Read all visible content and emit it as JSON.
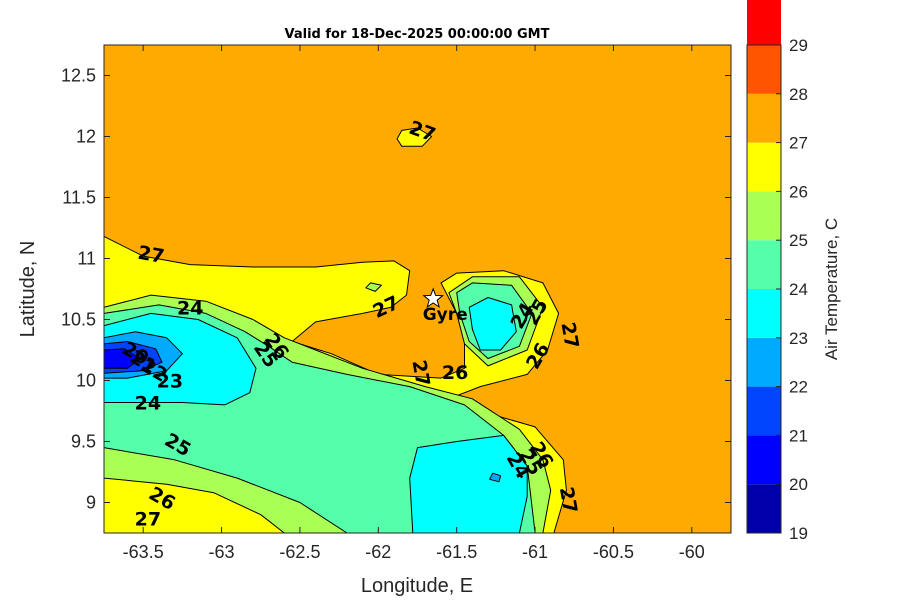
{
  "chart_data": {
    "type": "contour",
    "title": "Valid for 18-Dec-2025 00:00:00 GMT",
    "xlabel": "Longitude, E",
    "ylabel": "Latitude, N",
    "xlim": [
      -63.75,
      -59.75
    ],
    "ylim": [
      8.75,
      12.75
    ],
    "xticks": [
      -63.5,
      -63,
      -62.5,
      -62,
      -61.5,
      -61,
      -60.5,
      -60
    ],
    "xtick_labels": [
      "-63.5",
      "-63",
      "-62.5",
      "-62",
      "-61.5",
      "-61",
      "-60.5",
      "-60"
    ],
    "yticks": [
      9,
      9.5,
      10,
      10.5,
      11,
      11.5,
      12,
      12.5
    ],
    "ytick_labels": [
      "9",
      "9.5",
      "10",
      "10.5",
      "11",
      "11.5",
      "12",
      "12.5"
    ],
    "colorbar": {
      "label": "Air Temperature, C",
      "min": 19,
      "max": 29,
      "tick_labels": [
        "19",
        "20",
        "21",
        "22",
        "23",
        "24",
        "25",
        "26",
        "27",
        "28",
        "29"
      ],
      "colors": [
        "#0000aa",
        "#0000ff",
        "#0044ff",
        "#00aaff",
        "#00ffff",
        "#55ffaa",
        "#aaff55",
        "#ffff00",
        "#ffaa00",
        "#ff5500",
        "#ff0000"
      ]
    },
    "background_level_color": "#ffaa00",
    "regions": [
      {
        "name": "yellow-west",
        "color": "#ffff00",
        "points": [
          [
            -63.75,
            11.18
          ],
          [
            -63.5,
            11.02
          ],
          [
            -63.2,
            10.95
          ],
          [
            -62.8,
            10.93
          ],
          [
            -62.4,
            10.93
          ],
          [
            -62.1,
            10.97
          ],
          [
            -61.9,
            10.98
          ],
          [
            -61.8,
            10.9
          ],
          [
            -61.82,
            10.7
          ],
          [
            -61.92,
            10.6
          ],
          [
            -62.1,
            10.55
          ],
          [
            -62.4,
            10.48
          ],
          [
            -62.55,
            10.32
          ],
          [
            -62.3,
            10.22
          ],
          [
            -62,
            10.05
          ],
          [
            -61.6,
            10.02
          ],
          [
            -61.45,
            10.1
          ],
          [
            -61.45,
            10.32
          ],
          [
            -61.5,
            10.55
          ],
          [
            -61.6,
            10.8
          ],
          [
            -61.5,
            10.88
          ],
          [
            -61.2,
            10.9
          ],
          [
            -60.95,
            10.8
          ],
          [
            -60.85,
            10.55
          ],
          [
            -60.92,
            10.25
          ],
          [
            -61.05,
            10.05
          ],
          [
            -61.35,
            9.95
          ],
          [
            -61.55,
            9.85
          ],
          [
            -61.35,
            9.75
          ],
          [
            -61,
            9.62
          ],
          [
            -60.82,
            9.35
          ],
          [
            -60.8,
            9.1
          ],
          [
            -60.88,
            8.75
          ],
          [
            -63.75,
            8.75
          ]
        ]
      },
      {
        "name": "green-west",
        "color": "#aaff55",
        "points": [
          [
            -63.75,
            10.6
          ],
          [
            -63.45,
            10.7
          ],
          [
            -63.1,
            10.65
          ],
          [
            -62.8,
            10.5
          ],
          [
            -62.6,
            10.35
          ],
          [
            -62.4,
            10.25
          ],
          [
            -62.1,
            10.1
          ],
          [
            -61.7,
            9.95
          ],
          [
            -61.4,
            9.85
          ],
          [
            -61.1,
            9.6
          ],
          [
            -60.95,
            9.35
          ],
          [
            -60.9,
            9.1
          ],
          [
            -60.95,
            8.75
          ],
          [
            -62.6,
            8.75
          ],
          [
            -62.75,
            8.9
          ],
          [
            -63.05,
            9.08
          ],
          [
            -63.35,
            9.15
          ],
          [
            -63.75,
            9.2
          ]
        ]
      },
      {
        "name": "green-east",
        "color": "#aaff55",
        "points": [
          [
            -61.55,
            10.72
          ],
          [
            -61.4,
            10.85
          ],
          [
            -61.1,
            10.85
          ],
          [
            -60.95,
            10.6
          ],
          [
            -61.05,
            10.25
          ],
          [
            -61.3,
            10.12
          ],
          [
            -61.45,
            10.3
          ],
          [
            -61.5,
            10.55
          ]
        ]
      },
      {
        "name": "mint-west",
        "color": "#55ffaa",
        "points": [
          [
            -63.75,
            10.55
          ],
          [
            -63.4,
            10.62
          ],
          [
            -63.1,
            10.55
          ],
          [
            -62.85,
            10.4
          ],
          [
            -62.7,
            10.28
          ],
          [
            -62.55,
            10.15
          ],
          [
            -62.2,
            10.05
          ],
          [
            -61.8,
            9.95
          ],
          [
            -61.45,
            9.8
          ],
          [
            -61.2,
            9.55
          ],
          [
            -61.05,
            9.3
          ],
          [
            -61,
            8.75
          ],
          [
            -62.2,
            8.75
          ],
          [
            -62.5,
            9
          ],
          [
            -62.9,
            9.2
          ],
          [
            -63.3,
            9.35
          ],
          [
            -63.75,
            9.45
          ]
        ]
      },
      {
        "name": "mint-east",
        "color": "#55ffaa",
        "points": [
          [
            -61.5,
            10.72
          ],
          [
            -61.4,
            10.8
          ],
          [
            -61.15,
            10.78
          ],
          [
            -61.02,
            10.55
          ],
          [
            -61.1,
            10.28
          ],
          [
            -61.3,
            10.18
          ],
          [
            -61.42,
            10.32
          ],
          [
            -61.48,
            10.55
          ]
        ]
      },
      {
        "name": "cyan-west",
        "color": "#00ffff",
        "points": [
          [
            -63.75,
            10.45
          ],
          [
            -63.45,
            10.55
          ],
          [
            -63.15,
            10.5
          ],
          [
            -62.9,
            10.35
          ],
          [
            -62.78,
            10.1
          ],
          [
            -62.82,
            9.9
          ],
          [
            -62.98,
            9.8
          ],
          [
            -63.25,
            9.82
          ],
          [
            -63.5,
            9.82
          ],
          [
            -63.75,
            9.82
          ]
        ]
      },
      {
        "name": "cyan-south",
        "color": "#00ffff",
        "points": [
          [
            -61.5,
            9.5
          ],
          [
            -61.2,
            9.55
          ],
          [
            -61.05,
            9.3
          ],
          [
            -61.05,
            9.05
          ],
          [
            -61.1,
            8.75
          ],
          [
            -61.78,
            8.75
          ],
          [
            -61.8,
            9.2
          ],
          [
            -61.75,
            9.45
          ]
        ]
      },
      {
        "name": "cyan-east",
        "color": "#00ffff",
        "points": [
          [
            -61.42,
            10.6
          ],
          [
            -61.3,
            10.68
          ],
          [
            -61.15,
            10.62
          ],
          [
            -61.12,
            10.4
          ],
          [
            -61.22,
            10.25
          ],
          [
            -61.35,
            10.25
          ],
          [
            -61.4,
            10.42
          ]
        ]
      },
      {
        "name": "sky-west",
        "color": "#00aaff",
        "points": [
          [
            -63.75,
            10.35
          ],
          [
            -63.55,
            10.4
          ],
          [
            -63.35,
            10.35
          ],
          [
            -63.25,
            10.22
          ],
          [
            -63.35,
            10.08
          ],
          [
            -63.6,
            10.02
          ],
          [
            -63.75,
            10.02
          ]
        ]
      },
      {
        "name": "blue-west",
        "color": "#0044ff",
        "points": [
          [
            -63.75,
            10.3
          ],
          [
            -63.6,
            10.32
          ],
          [
            -63.42,
            10.26
          ],
          [
            -63.38,
            10.15
          ],
          [
            -63.5,
            10.08
          ],
          [
            -63.75,
            10.06
          ]
        ]
      },
      {
        "name": "navy-west",
        "color": "#0000ff",
        "points": [
          [
            -63.75,
            10.25
          ],
          [
            -63.62,
            10.26
          ],
          [
            -63.52,
            10.18
          ],
          [
            -63.6,
            10.1
          ],
          [
            -63.75,
            10.1
          ]
        ]
      },
      {
        "name": "islet-north",
        "color": "#ffff00",
        "points": [
          [
            -61.85,
            12.05
          ],
          [
            -61.75,
            12.07
          ],
          [
            -61.66,
            12
          ],
          [
            -61.72,
            11.92
          ],
          [
            -61.85,
            11.92
          ],
          [
            -61.88,
            11.98
          ]
        ]
      },
      {
        "name": "islet-green",
        "color": "#aaff55",
        "points": [
          [
            -62.05,
            10.8
          ],
          [
            -61.98,
            10.78
          ],
          [
            -62.02,
            10.73
          ],
          [
            -62.08,
            10.76
          ]
        ]
      },
      {
        "name": "islet-blue",
        "color": "#00aaff",
        "points": [
          [
            -61.27,
            9.24
          ],
          [
            -61.22,
            9.22
          ],
          [
            -61.23,
            9.17
          ],
          [
            -61.29,
            9.19
          ]
        ]
      }
    ],
    "contour_labels": [
      {
        "text": "27",
        "x": -61.72,
        "y": 12.04,
        "rotate": 20
      },
      {
        "text": "27",
        "x": -63.45,
        "y": 11.03,
        "rotate": 10
      },
      {
        "text": "24",
        "x": -63.2,
        "y": 10.59,
        "rotate": 0
      },
      {
        "text": "20",
        "x": -63.55,
        "y": 10.22,
        "rotate": 30
      },
      {
        "text": "21",
        "x": -63.5,
        "y": 10.15,
        "rotate": 30
      },
      {
        "text": "22",
        "x": -63.43,
        "y": 10.08,
        "rotate": 30
      },
      {
        "text": "23",
        "x": -63.33,
        "y": 9.99,
        "rotate": 0
      },
      {
        "text": "24",
        "x": -63.47,
        "y": 9.81,
        "rotate": 0
      },
      {
        "text": "25",
        "x": -63.28,
        "y": 9.47,
        "rotate": 30
      },
      {
        "text": "26",
        "x": -63.38,
        "y": 9.03,
        "rotate": 30
      },
      {
        "text": "27",
        "x": -63.47,
        "y": 8.86,
        "rotate": 0
      },
      {
        "text": "26",
        "x": -62.65,
        "y": 10.28,
        "rotate": 55
      },
      {
        "text": "25",
        "x": -62.72,
        "y": 10.21,
        "rotate": 55
      },
      {
        "text": "27",
        "x": -61.95,
        "y": 10.6,
        "rotate": -25
      },
      {
        "text": "27",
        "x": -61.73,
        "y": 10.06,
        "rotate": 80
      },
      {
        "text": "26",
        "x": -61.51,
        "y": 10.06,
        "rotate": 0
      },
      {
        "text": "24",
        "x": -61.08,
        "y": 10.53,
        "rotate": -60
      },
      {
        "text": "25",
        "x": -60.99,
        "y": 10.56,
        "rotate": -60
      },
      {
        "text": "26",
        "x": -60.98,
        "y": 10.2,
        "rotate": -60
      },
      {
        "text": "27",
        "x": -60.78,
        "y": 10.37,
        "rotate": 80
      },
      {
        "text": "26",
        "x": -60.96,
        "y": 9.39,
        "rotate": 60
      },
      {
        "text": "25",
        "x": -61.03,
        "y": 9.33,
        "rotate": 60
      },
      {
        "text": "24",
        "x": -61.11,
        "y": 9.3,
        "rotate": 60
      },
      {
        "text": "27",
        "x": -60.79,
        "y": 9.02,
        "rotate": 80
      }
    ],
    "markers": [
      {
        "type": "star",
        "label": "Gyre",
        "x": -61.65,
        "y": 10.67
      }
    ]
  }
}
